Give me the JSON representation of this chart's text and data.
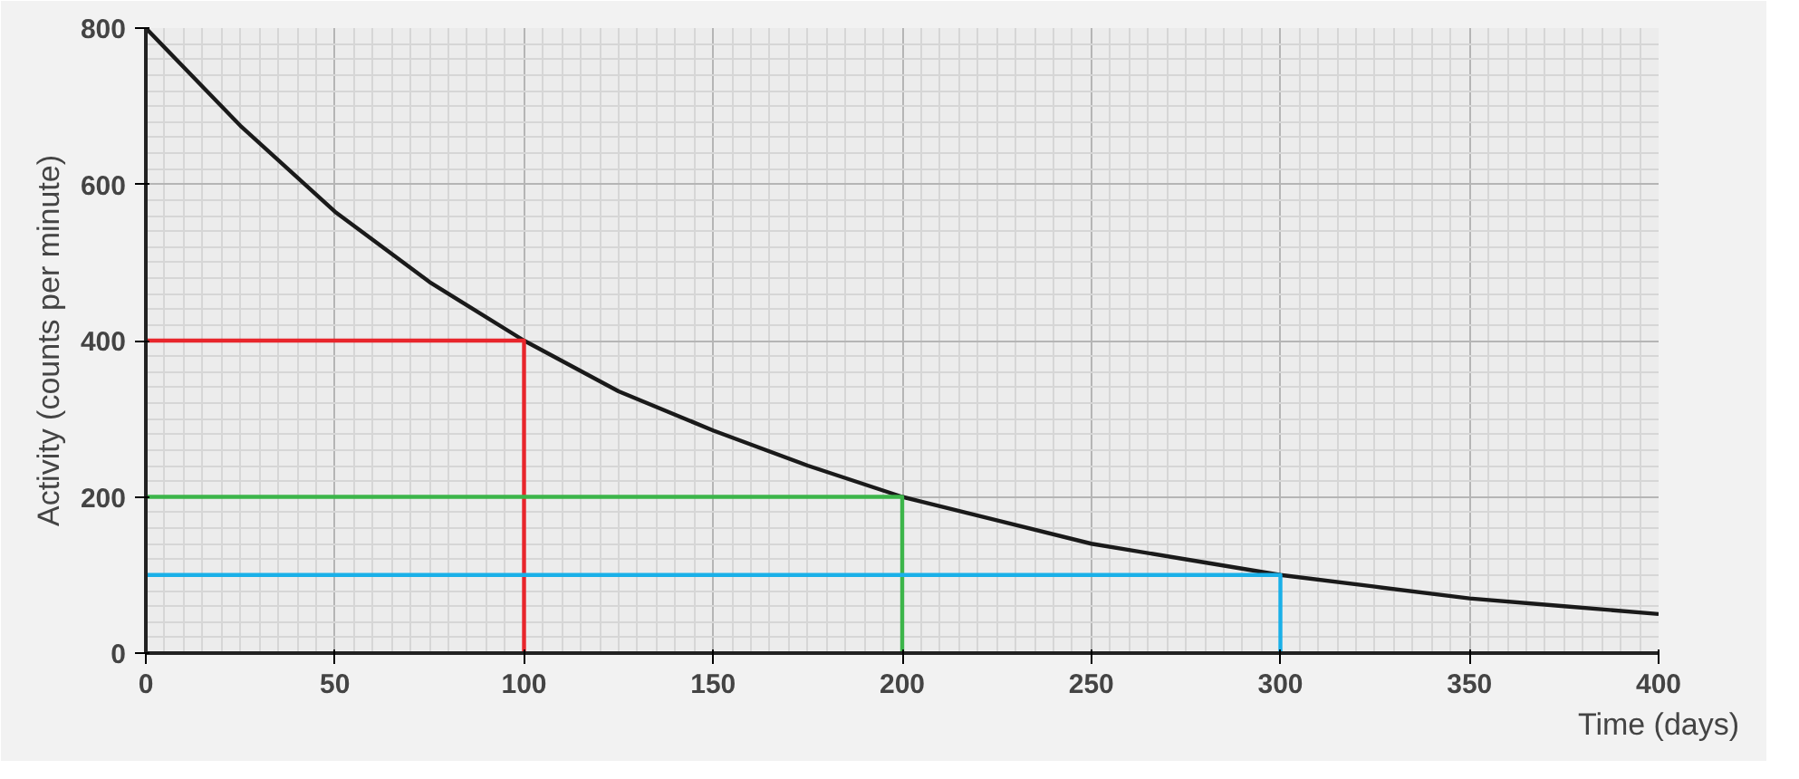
{
  "chart_data": {
    "type": "line",
    "xlabel": "Time (days)",
    "ylabel": "Activity (counts per minute)",
    "xlim": [
      0,
      400
    ],
    "ylim": [
      0,
      800
    ],
    "xticks": [
      0,
      50,
      100,
      150,
      200,
      250,
      300,
      350,
      400
    ],
    "yticks": [
      0,
      200,
      400,
      600,
      800
    ],
    "grid": true,
    "series": [
      {
        "color": "#1a1a1a",
        "x": [
          0,
          25,
          50,
          75,
          100,
          125,
          150,
          175,
          200,
          225,
          250,
          275,
          300,
          325,
          350,
          375,
          400
        ],
        "values": [
          800,
          675,
          565,
          475,
          400,
          335,
          285,
          240,
          200,
          170,
          140,
          120,
          100,
          85,
          70,
          60,
          50
        ]
      },
      {
        "color": "#e8262c",
        "x": [
          0,
          100,
          100
        ],
        "values": [
          400,
          400,
          0
        ]
      },
      {
        "color": "#3cb54a",
        "x": [
          0,
          200,
          200
        ],
        "values": [
          200,
          200,
          0
        ]
      },
      {
        "color": "#1ab0e8",
        "x": [
          0,
          300,
          300
        ],
        "values": [
          100,
          100,
          0
        ]
      }
    ]
  }
}
